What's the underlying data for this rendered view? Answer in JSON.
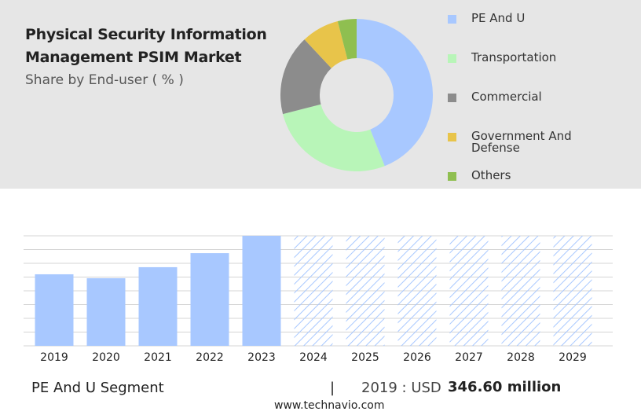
{
  "chart_data": [
    {
      "type": "donut",
      "title": "Physical Security Information Management PSIM Market",
      "subtitle": "Share by End-user ( % )",
      "categories": [
        "PE And U",
        "Transportation",
        "Commercial",
        "Government And Defense",
        "Others"
      ],
      "values": [
        44,
        27,
        17,
        8,
        4
      ],
      "colors": [
        "#a8c8ff",
        "#b8f5b8",
        "#8c8c8c",
        "#e8c44a",
        "#8fbf50"
      ]
    },
    {
      "type": "bar",
      "categories": [
        "2019",
        "2020",
        "2021",
        "2022",
        "2023",
        "2024",
        "2025",
        "2026",
        "2027",
        "2028",
        "2029"
      ],
      "values": [
        346.6,
        327.6,
        381,
        449,
        533,
        null,
        null,
        null,
        null,
        null,
        null
      ],
      "color": "#a8c8ff",
      "ylim": [
        0,
        533
      ],
      "yticks": [
        0,
        66.6,
        133.3,
        199.9,
        266.5,
        333.1,
        399.8,
        466.4,
        533
      ],
      "grid": true
    }
  ],
  "footer": {
    "segment": "PE And U Segment",
    "separator": "|",
    "year_label": "2019 : USD",
    "value": "346.60 million",
    "source": "www.technavio.com"
  }
}
